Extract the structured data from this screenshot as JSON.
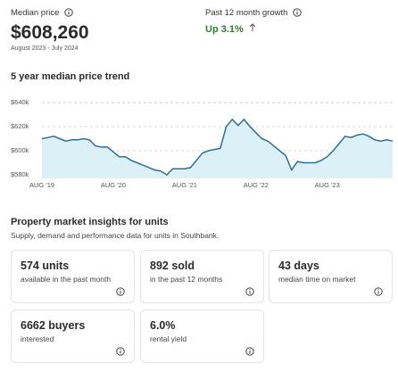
{
  "header": {
    "median_price_label": "Median price",
    "median_price": "$608,260",
    "period": "August 2023 - July 2024",
    "growth_label": "Past 12 month growth",
    "growth": "Up 3.1%"
  },
  "chart_data": {
    "type": "line",
    "title": "5 year median price trend",
    "categories": [
      "AUG '19",
      null,
      null,
      null,
      null,
      null,
      null,
      null,
      null,
      null,
      null,
      null,
      "AUG '20",
      null,
      null,
      null,
      null,
      null,
      null,
      null,
      null,
      null,
      null,
      null,
      "AUG '21",
      null,
      null,
      null,
      null,
      null,
      null,
      null,
      null,
      null,
      null,
      null,
      "AUG '22",
      null,
      null,
      null,
      null,
      null,
      null,
      null,
      null,
      null,
      null,
      null,
      "AUG '23",
      null,
      null,
      null,
      null,
      null,
      null,
      null,
      null,
      null,
      null,
      null
    ],
    "values": [
      610,
      611,
      612,
      610,
      608,
      609,
      609,
      610,
      609,
      604,
      603,
      603,
      599,
      595,
      595,
      592,
      590,
      588,
      586,
      584,
      583,
      580,
      585,
      585,
      585,
      586,
      592,
      598,
      600,
      601,
      602,
      620,
      626,
      621,
      626,
      620,
      615,
      610,
      608,
      604,
      600,
      596,
      584,
      591,
      590,
      590,
      590,
      592,
      595,
      600,
      606,
      612,
      611,
      613,
      614,
      612,
      609,
      608,
      609,
      608
    ],
    "color": "#2f6f91",
    "ylim": [
      577,
      643
    ],
    "yticks": [
      {
        "value": 580,
        "label": "$580k"
      },
      {
        "value": 600,
        "label": "$600k"
      },
      {
        "value": 620,
        "label": "$620k"
      },
      {
        "value": 640,
        "label": "$640k"
      }
    ],
    "grid": true
  },
  "insights": {
    "title": "Property market insights for units",
    "subtitle": "Supply, demand and performance data for units in Southbank.",
    "cards": [
      {
        "value": "574 units",
        "label": "available in the past month"
      },
      {
        "value": "892 sold",
        "label": "in the past 12 months"
      },
      {
        "value": "43 days",
        "label": "median time on market"
      },
      {
        "value": "6662 buyers",
        "label": "interested"
      },
      {
        "value": "6.0%",
        "label": "rental yield"
      }
    ]
  }
}
